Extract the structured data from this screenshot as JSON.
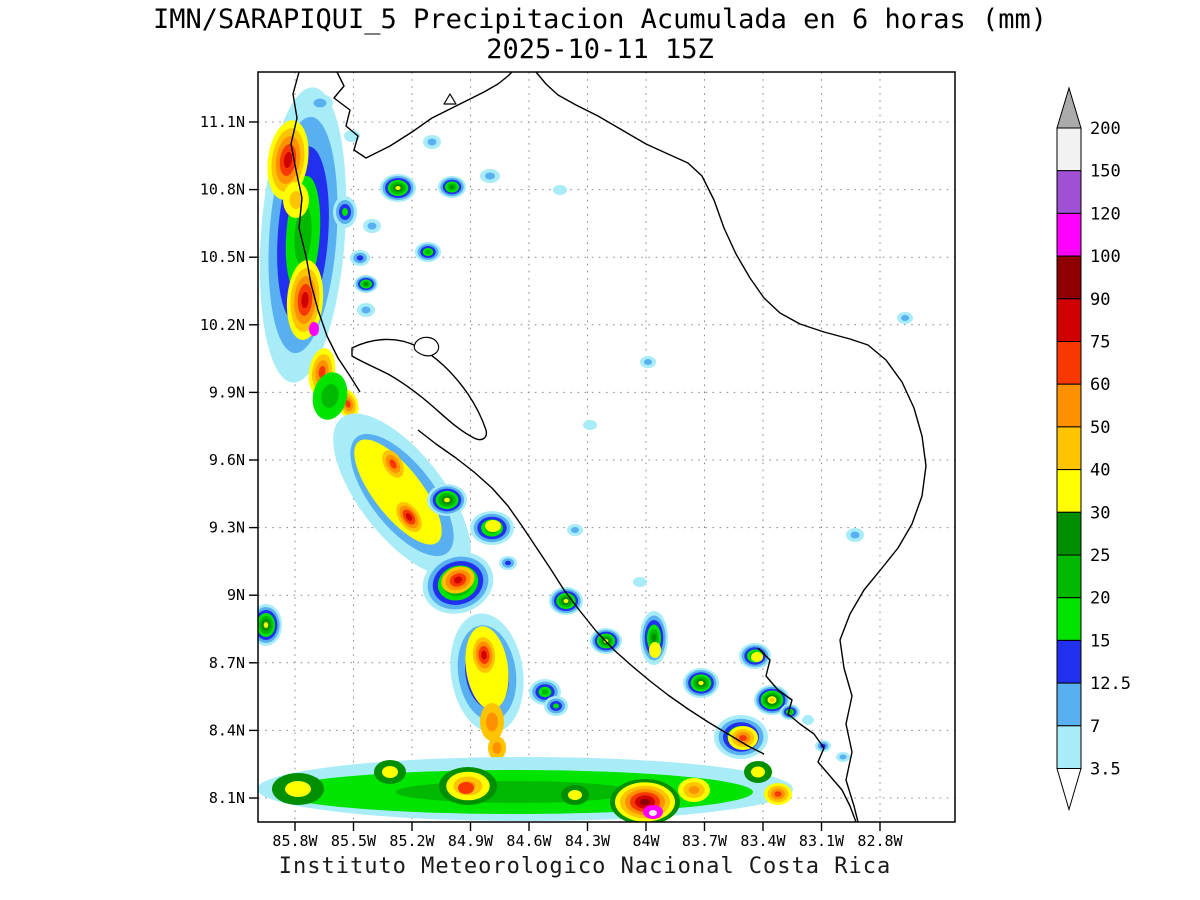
{
  "header": {
    "title": "IMN/SARAPIQUI_5 Precipitacion Acumulada en 6 horas (mm)",
    "subtitle": "2025-10-11 15Z"
  },
  "footer": {
    "credit": "Instituto Meteorologico Nacional Costa Rica"
  },
  "chart_data": {
    "type": "heatmap",
    "variant": "filled-contour accumulated precipitation map over Costa Rica",
    "title": "IMN/SARAPIQUI_5 Precipitacion Acumulada en 6 horas (mm)",
    "subtitle": "2025-10-11 15Z",
    "units": "mm",
    "x_tick_labels": [
      "85.8W",
      "85.5W",
      "85.2W",
      "84.9W",
      "84.6W",
      "84.3W",
      "84W",
      "83.7W",
      "83.4W",
      "83.1W",
      "82.8W"
    ],
    "y_tick_labels": [
      "11.1N",
      "10.8N",
      "10.5N",
      "10.2N",
      "9.9N",
      "9.6N",
      "9.3N",
      "9N",
      "8.7N",
      "8.4N",
      "8.1N"
    ],
    "grid": {
      "style": "dotted",
      "color": "#8a8a8a"
    },
    "colorbar": {
      "labels_top_to_bottom": [
        "200",
        "150",
        "120",
        "100",
        "90",
        "75",
        "60",
        "50",
        "40",
        "30",
        "25",
        "20",
        "15",
        "12.5",
        "7",
        "3.5"
      ],
      "above_max_color": "#ababab",
      "below_min_color": "#ffffff"
    },
    "palette_low_to_high": [
      "#a8ecf8",
      "#58b0f0",
      "#2030ee",
      "#00e400",
      "#00b900",
      "#008f00",
      "#ffff00",
      "#ffc400",
      "#ff9100",
      "#f83800",
      "#d00000",
      "#8f0000",
      "#ff00ff",
      "#a050d2",
      "#f2f2f2"
    ],
    "cells_encoding": "[cx,cy,rx,ry,rotationDeg,levelLowIdx,levelHighIdx] page pixels; level indexes palette_low_to_high; rings drawn outer(low) to inner(high)",
    "cells": [
      [
        303,
        235,
        42,
        148,
        4,
        0,
        4
      ],
      [
        288,
        160,
        20,
        40,
        8,
        6,
        10
      ],
      [
        296,
        200,
        13,
        18,
        0,
        6,
        7
      ],
      [
        305,
        300,
        18,
        40,
        4,
        6,
        10
      ],
      [
        314,
        329,
        5,
        7,
        0,
        12,
        12
      ],
      [
        322,
        372,
        13,
        24,
        8,
        6,
        9
      ],
      [
        348,
        404,
        10,
        15,
        -18,
        6,
        9
      ],
      [
        330,
        396,
        17,
        24,
        12,
        3,
        4
      ],
      [
        320,
        103,
        13,
        9,
        0,
        0,
        1
      ],
      [
        352,
        136,
        8,
        6,
        0,
        0,
        0
      ],
      [
        398,
        188,
        18,
        14,
        0,
        0,
        6
      ],
      [
        345,
        212,
        12,
        16,
        0,
        0,
        3
      ],
      [
        372,
        226,
        9,
        7,
        0,
        0,
        1
      ],
      [
        360,
        258,
        10,
        8,
        0,
        0,
        2
      ],
      [
        366,
        284,
        12,
        9,
        0,
        0,
        5
      ],
      [
        428,
        252,
        13,
        10,
        0,
        0,
        4
      ],
      [
        452,
        187,
        14,
        11,
        0,
        0,
        5
      ],
      [
        490,
        176,
        10,
        7,
        0,
        0,
        1
      ],
      [
        432,
        142,
        9,
        7,
        0,
        0,
        1
      ],
      [
        366,
        310,
        9,
        7,
        0,
        0,
        1
      ],
      [
        560,
        190,
        7,
        5,
        0,
        0,
        0
      ],
      [
        648,
        362,
        8,
        6,
        0,
        0,
        1
      ],
      [
        905,
        318,
        8,
        6,
        0,
        0,
        1
      ],
      [
        855,
        535,
        9,
        7,
        0,
        0,
        1
      ],
      [
        590,
        425,
        7,
        5,
        0,
        0,
        0
      ],
      [
        575,
        530,
        8,
        6,
        0,
        0,
        1
      ],
      [
        640,
        582,
        7,
        5,
        0,
        0,
        0
      ],
      [
        402,
        495,
        42,
        98,
        -38,
        0,
        3
      ],
      [
        398,
        492,
        24,
        64,
        -38,
        6,
        6
      ],
      [
        393,
        464,
        9,
        15,
        -30,
        7,
        9
      ],
      [
        409,
        517,
        10,
        17,
        -35,
        7,
        10
      ],
      [
        447,
        500,
        20,
        16,
        0,
        0,
        6
      ],
      [
        492,
        528,
        22,
        17,
        0,
        0,
        5
      ],
      [
        493,
        526,
        8,
        6,
        0,
        6,
        6
      ],
      [
        458,
        583,
        36,
        30,
        -20,
        0,
        6
      ],
      [
        458,
        580,
        17,
        13,
        -20,
        7,
        10
      ],
      [
        508,
        563,
        9,
        7,
        0,
        0,
        2
      ],
      [
        487,
        673,
        36,
        60,
        -8,
        0,
        4
      ],
      [
        487,
        668,
        21,
        42,
        -8,
        6,
        6
      ],
      [
        484,
        655,
        11,
        18,
        -5,
        7,
        10
      ],
      [
        492,
        722,
        12,
        19,
        0,
        7,
        8
      ],
      [
        497,
        748,
        9,
        12,
        0,
        7,
        8
      ],
      [
        545,
        692,
        16,
        13,
        0,
        0,
        4
      ],
      [
        556,
        706,
        12,
        10,
        0,
        0,
        3
      ],
      [
        566,
        601,
        17,
        14,
        0,
        0,
        6
      ],
      [
        606,
        641,
        16,
        13,
        0,
        0,
        6
      ],
      [
        654,
        638,
        14,
        27,
        0,
        0,
        5
      ],
      [
        655,
        650,
        6,
        8,
        0,
        6,
        6
      ],
      [
        701,
        683,
        18,
        15,
        0,
        0,
        6
      ],
      [
        755,
        656,
        16,
        13,
        0,
        0,
        5
      ],
      [
        757,
        657,
        6,
        5,
        0,
        6,
        6
      ],
      [
        772,
        700,
        18,
        15,
        0,
        0,
        7
      ],
      [
        790,
        712,
        10,
        8,
        0,
        0,
        4
      ],
      [
        741,
        737,
        27,
        22,
        0,
        0,
        5
      ],
      [
        743,
        738,
        15,
        12,
        0,
        6,
        9
      ],
      [
        823,
        746,
        8,
        6,
        0,
        0,
        2
      ],
      [
        843,
        757,
        7,
        5,
        0,
        0,
        1
      ],
      [
        808,
        720,
        6,
        5,
        0,
        0,
        0
      ],
      [
        525,
        789,
        268,
        32,
        0,
        0,
        1
      ],
      [
        515,
        792,
        238,
        22,
        0,
        3,
        4
      ],
      [
        298,
        789,
        26,
        16,
        0,
        5,
        6
      ],
      [
        390,
        772,
        16,
        12,
        0,
        5,
        6
      ],
      [
        468,
        786,
        29,
        19,
        0,
        5,
        8
      ],
      [
        466,
        788,
        8,
        6,
        0,
        9,
        9
      ],
      [
        575,
        795,
        14,
        10,
        0,
        5,
        6
      ],
      [
        645,
        802,
        35,
        23,
        0,
        5,
        11
      ],
      [
        653,
        812,
        10,
        7,
        0,
        12,
        12
      ],
      [
        653,
        813,
        4,
        3,
        0,
        14,
        14
      ],
      [
        694,
        790,
        16,
        12,
        0,
        6,
        8
      ],
      [
        758,
        772,
        14,
        11,
        0,
        5,
        6
      ],
      [
        778,
        794,
        14,
        11,
        0,
        6,
        9
      ],
      [
        266,
        625,
        16,
        21,
        0,
        0,
        6
      ]
    ],
    "coastlines": [
      "M337,72 L344,86 L334,98 L350,110 L346,126 L358,136 L354,150 L366,158 L390,146 L412,132 L432,118 L452,108 L468,100 L484,92 L498,84 L508,76 L512,72",
      "M536,72 L546,84 L558,95 L576,105 L598,116 L622,130 L646,144 L668,154 L688,163 L702,176 L714,200 L724,228 L736,254 L750,278 L764,298 L780,313 L800,324 L824,332 L850,339 L868,345 L886,360 L902,382 L914,408 L922,436 L926,466 L922,496 L912,524 L898,548 L882,568 L864,590 L850,614 L840,640 L844,668 L852,696 L846,724 L852,752 L846,780 L854,806 L858,822",
      "M299,72 L293,94 L297,118 L291,144 L296,170 L302,198 L299,228 L306,256 L311,284 L318,310 L327,336 L338,358 L350,376 L360,392",
      "M352,348 C372,338 396,336 416,346 C436,356 454,374 468,394 C476,406 482,418 486,430 C488,438 482,442 474,438 C458,430 444,416 430,404 C416,392 402,382 388,374 C376,368 362,362 352,356 Z",
      "M418,430 L436,444 L456,458 L474,472 L492,488 L508,506 L522,526 L536,547 L550,568 L564,590 L580,611 L596,631 L614,650 L632,666 L650,681 L668,695 L688,709 L708,722 L728,734 L748,746 L764,754",
      "M758,648 L770,660 L766,676 L778,690 L792,700 L788,714 L800,724 L814,734 L824,748 L818,762 L830,776 L842,790 L850,806 L856,822"
    ],
    "closed_shapes": [
      "M416,342 C422,335 434,336 438,344 C441,352 432,358 423,355 C415,352 412,348 416,342 Z",
      "M450,94 L456,104 L444,104 Z"
    ]
  }
}
